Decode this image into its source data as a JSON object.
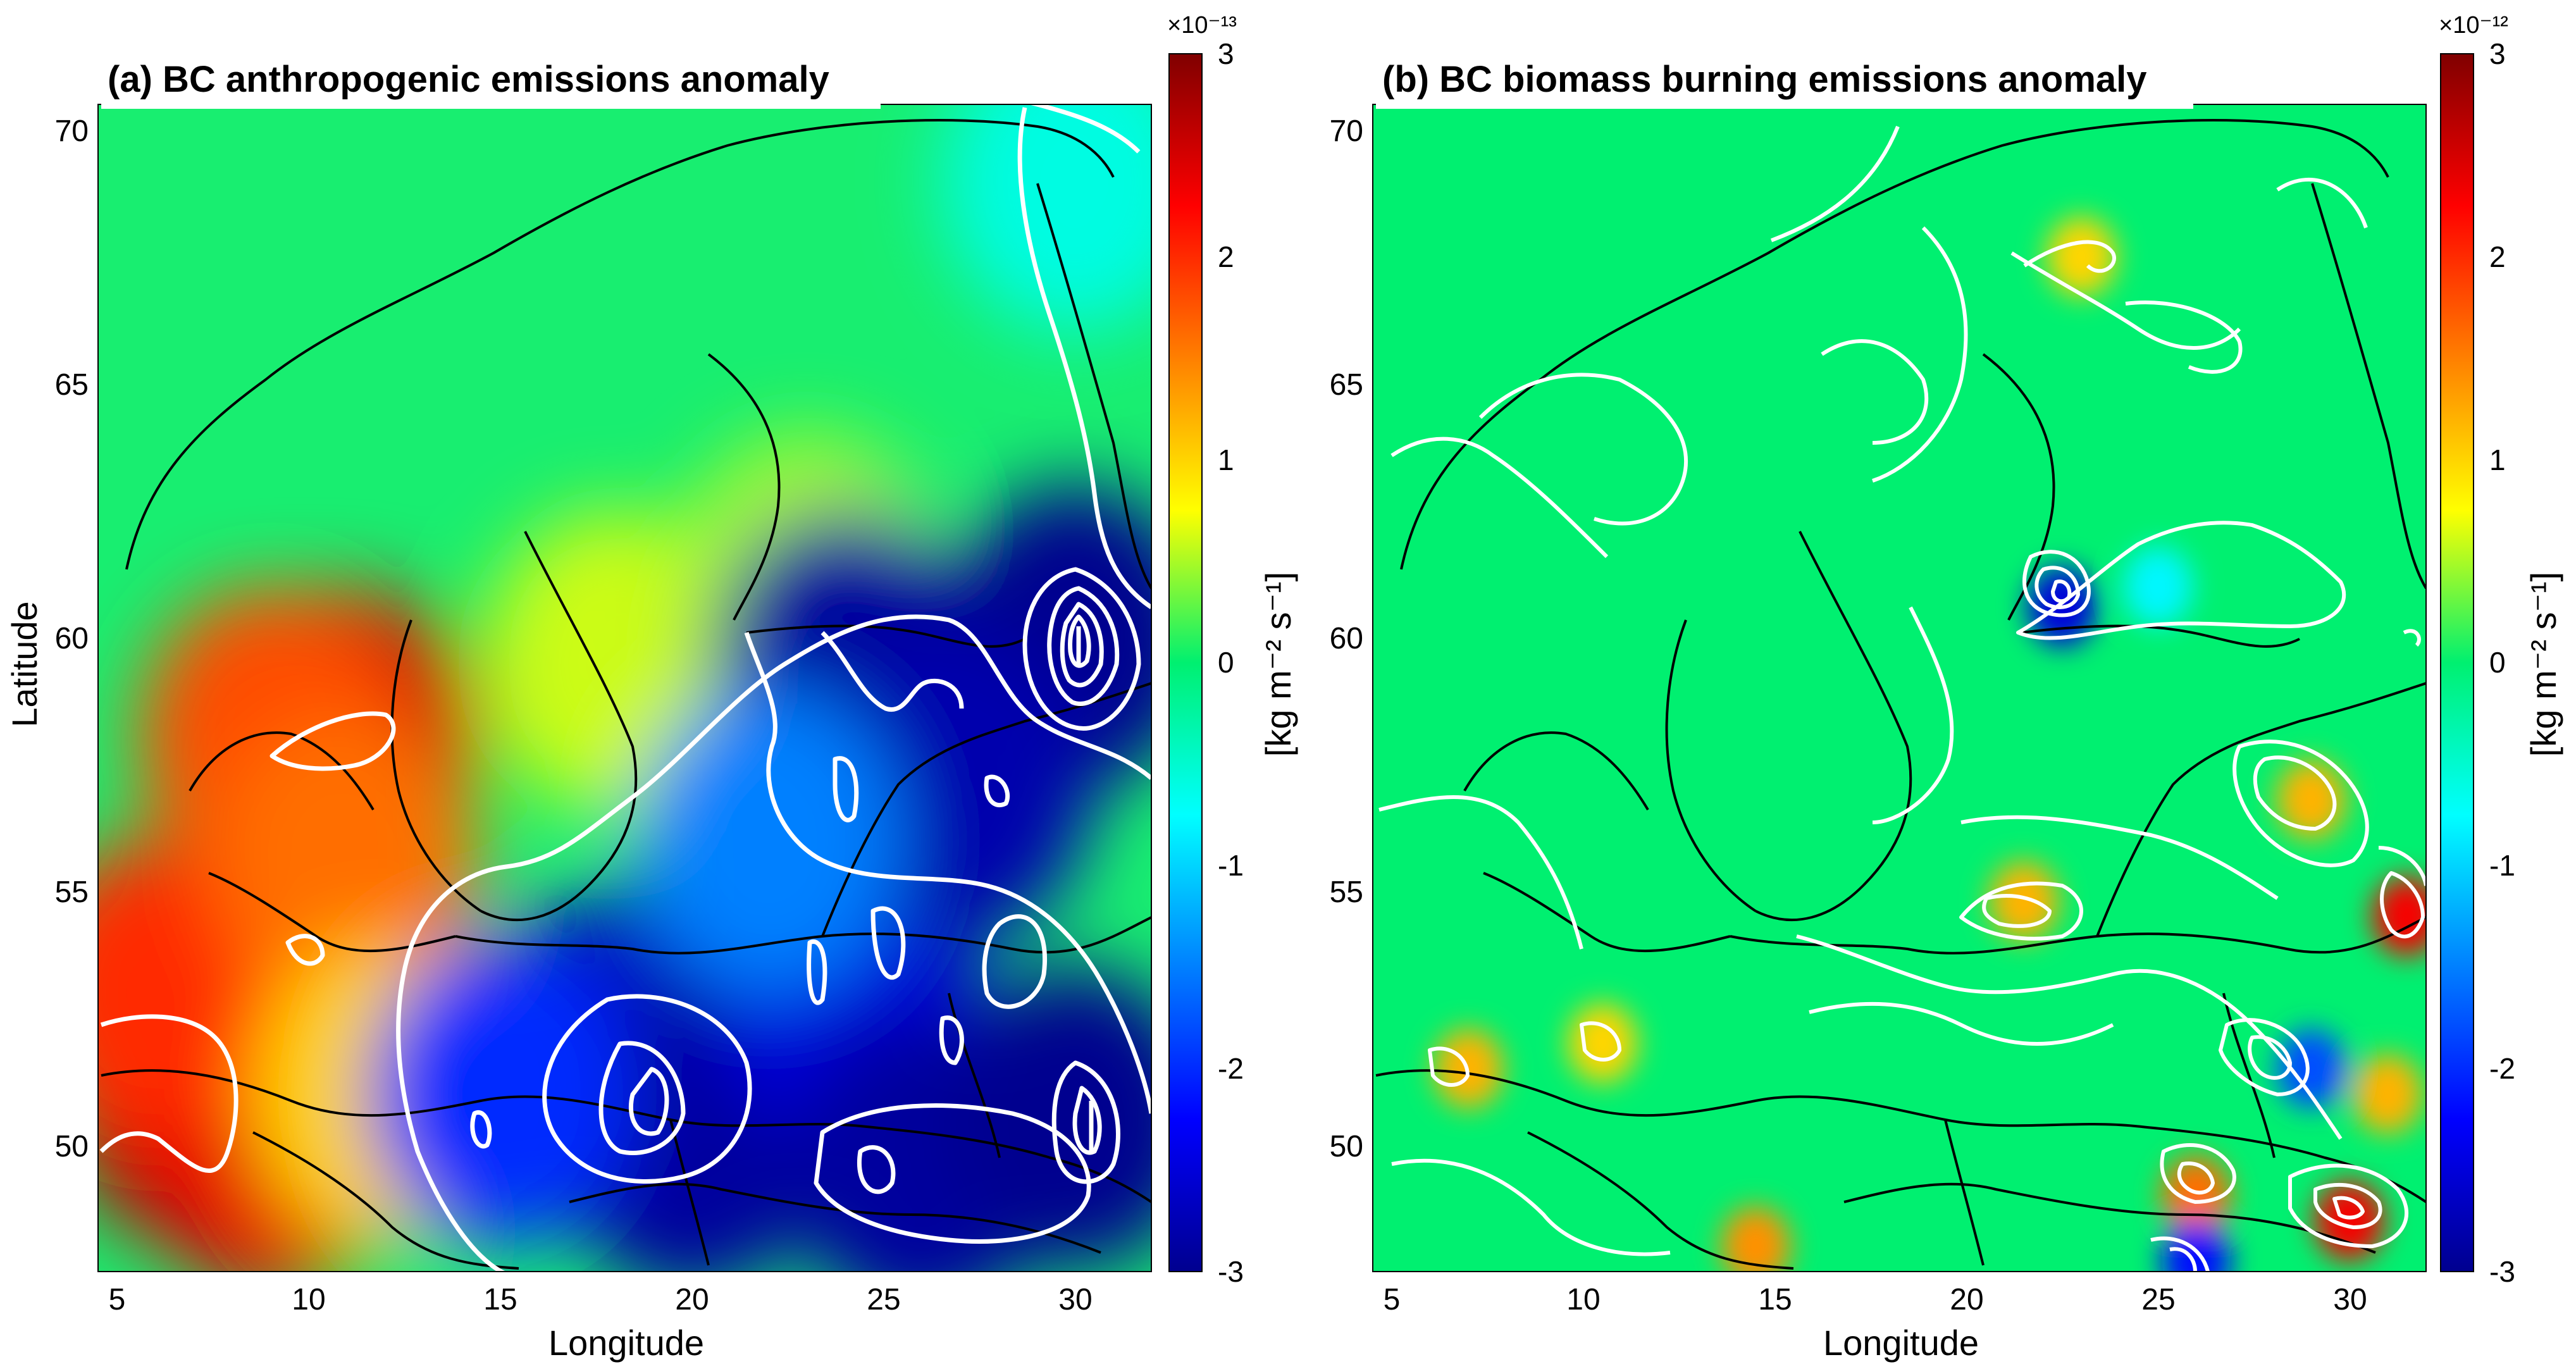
{
  "chart_data": [
    {
      "type": "heatmap",
      "title": "(a) BC anthropogenic emissions anomaly",
      "xlabel": "Longitude",
      "ylabel": "Latitude",
      "xlim": [
        4.5,
        32
      ],
      "ylim": [
        47.5,
        70.5
      ],
      "xticks": [
        "5",
        "10",
        "15",
        "20",
        "25",
        "30"
      ],
      "yticks": [
        "50",
        "55",
        "60",
        "65",
        "70"
      ],
      "colorbar": {
        "label": "[kg m⁻² s⁻¹]",
        "exponent": "×10⁻¹³",
        "range": [
          -3,
          3
        ],
        "ticks": [
          "3",
          "2",
          "1",
          "0",
          "-1",
          "-2",
          "-3"
        ],
        "colormap": "jet"
      },
      "regions": [
        {
          "lon": 7,
          "lat": 51,
          "value": 2.7
        },
        {
          "lon": 9,
          "lat": 50,
          "value": 2.4
        },
        {
          "lon": 6,
          "lat": 53,
          "value": 2.0
        },
        {
          "lon": 11,
          "lat": 58,
          "value": 2.5
        },
        {
          "lon": 9,
          "lat": 58,
          "value": 1.8
        },
        {
          "lon": 11,
          "lat": 55.5,
          "value": 1.6
        },
        {
          "lon": 12,
          "lat": 51,
          "value": 1.0
        },
        {
          "lon": 18,
          "lat": 59.5,
          "value": 0.6
        },
        {
          "lon": 23,
          "lat": 61,
          "value": 0.5
        },
        {
          "lon": 30,
          "lat": 69,
          "value": -0.6
        },
        {
          "lon": 18,
          "lat": 52,
          "value": -2.7
        },
        {
          "lon": 20,
          "lat": 50,
          "value": -2.9
        },
        {
          "lon": 24,
          "lat": 53,
          "value": -2.5
        },
        {
          "lon": 26,
          "lat": 49.5,
          "value": -2.9
        },
        {
          "lon": 30,
          "lat": 50.5,
          "value": -3.0
        },
        {
          "lon": 30,
          "lat": 60,
          "value": -3.0
        },
        {
          "lon": 24,
          "lat": 59.5,
          "value": -2.9
        },
        {
          "lon": 27,
          "lat": 57,
          "value": -2.8
        },
        {
          "lon": 15,
          "lat": 51,
          "value": -2.0
        },
        {
          "lon": 22,
          "lat": 56,
          "value": -1.5
        }
      ]
    },
    {
      "type": "heatmap",
      "title": "(b) BC biomass burning emissions anomaly",
      "xlabel": "Longitude",
      "ylabel": "",
      "xlim": [
        4.5,
        32
      ],
      "ylim": [
        47.5,
        70.5
      ],
      "xticks": [
        "5",
        "10",
        "15",
        "20",
        "25",
        "30"
      ],
      "yticks": [
        "50",
        "55",
        "60",
        "65",
        "70"
      ],
      "colorbar": {
        "label": "[kg m⁻² s⁻¹]",
        "exponent": "×10⁻¹²",
        "range": [
          -3,
          3
        ],
        "ticks": [
          "3",
          "2",
          "1",
          "0",
          "-1",
          "-2",
          "-3"
        ],
        "colormap": "jet"
      },
      "regions": [
        {
          "lon": 22.5,
          "lat": 60.6,
          "value": -2.5
        },
        {
          "lon": 25,
          "lat": 61,
          "value": -0.8
        },
        {
          "lon": 21.5,
          "lat": 54.8,
          "value": 1.2
        },
        {
          "lon": 29,
          "lat": 56.8,
          "value": 1.2
        },
        {
          "lon": 31.5,
          "lat": 54.5,
          "value": 2.3
        },
        {
          "lon": 30,
          "lat": 48.5,
          "value": 2.3
        },
        {
          "lon": 26,
          "lat": 49,
          "value": 1.6
        },
        {
          "lon": 29,
          "lat": 51.5,
          "value": -1.8
        },
        {
          "lon": 31,
          "lat": 51,
          "value": 1.2
        },
        {
          "lon": 7,
          "lat": 51.5,
          "value": 1.2
        },
        {
          "lon": 10.5,
          "lat": 52,
          "value": 1.0
        },
        {
          "lon": 14.5,
          "lat": 48,
          "value": 1.4
        },
        {
          "lon": 23,
          "lat": 67.5,
          "value": 1.0
        },
        {
          "lon": 26,
          "lat": 47.7,
          "value": -2.2
        }
      ]
    }
  ],
  "colors": {
    "contour": "#ffffff",
    "coastline": "#000000",
    "background": "#00f070"
  }
}
